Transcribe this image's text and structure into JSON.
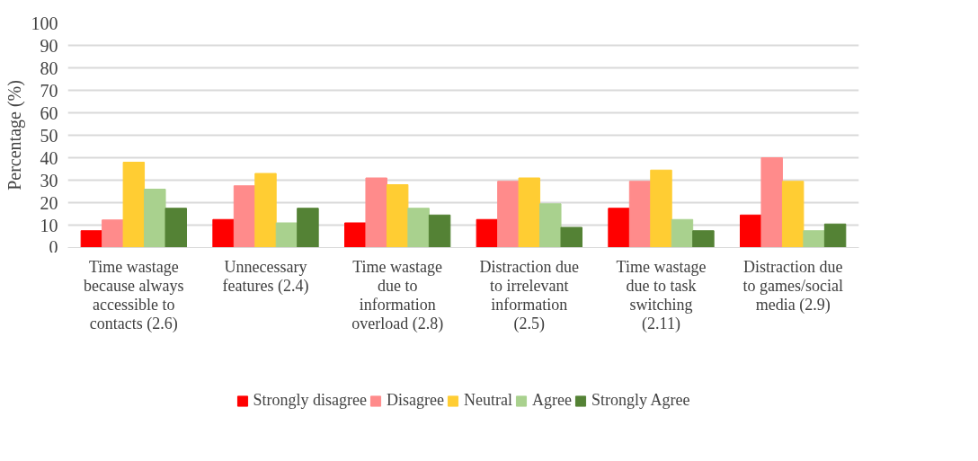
{
  "chart_data": {
    "type": "bar",
    "ylabel": "Percentage (%)",
    "categories": [
      "Time wastage because always accessible to contacts (2.6)",
      "Unnecessary features (2.4)",
      "Time wastage due to information overload (2.8)",
      "Distraction due to irrelevant information (2.5)",
      "Time wastage due to task switching (2.11)",
      "Distraction due to games/social media (2.9)"
    ],
    "series": [
      {
        "name": "Strongly disagree",
        "color": "#ff0000",
        "values": [
          7.5,
          12.5,
          11,
          12.5,
          17.5,
          14.5
        ]
      },
      {
        "name": "Disagree",
        "color": "#ff8b8b",
        "values": [
          12.3,
          27.5,
          31,
          29.5,
          29.5,
          40
        ]
      },
      {
        "name": "Neutral",
        "color": "#ffcd33",
        "values": [
          38,
          33,
          28,
          31,
          34.5,
          29.5
        ]
      },
      {
        "name": "Agree",
        "color": "#a9d18e",
        "values": [
          26,
          11,
          17.5,
          19.5,
          12.5,
          7.5
        ]
      },
      {
        "name": "Strongly Agree",
        "color": "#548235",
        "values": [
          17.5,
          17.5,
          14.5,
          9,
          7.5,
          10.5
        ]
      }
    ],
    "ylim": [
      0,
      100
    ],
    "yticks": [
      0,
      10,
      20,
      30,
      40,
      50,
      60,
      70,
      80,
      90,
      100
    ],
    "grid": "y",
    "legend": "bottom"
  }
}
